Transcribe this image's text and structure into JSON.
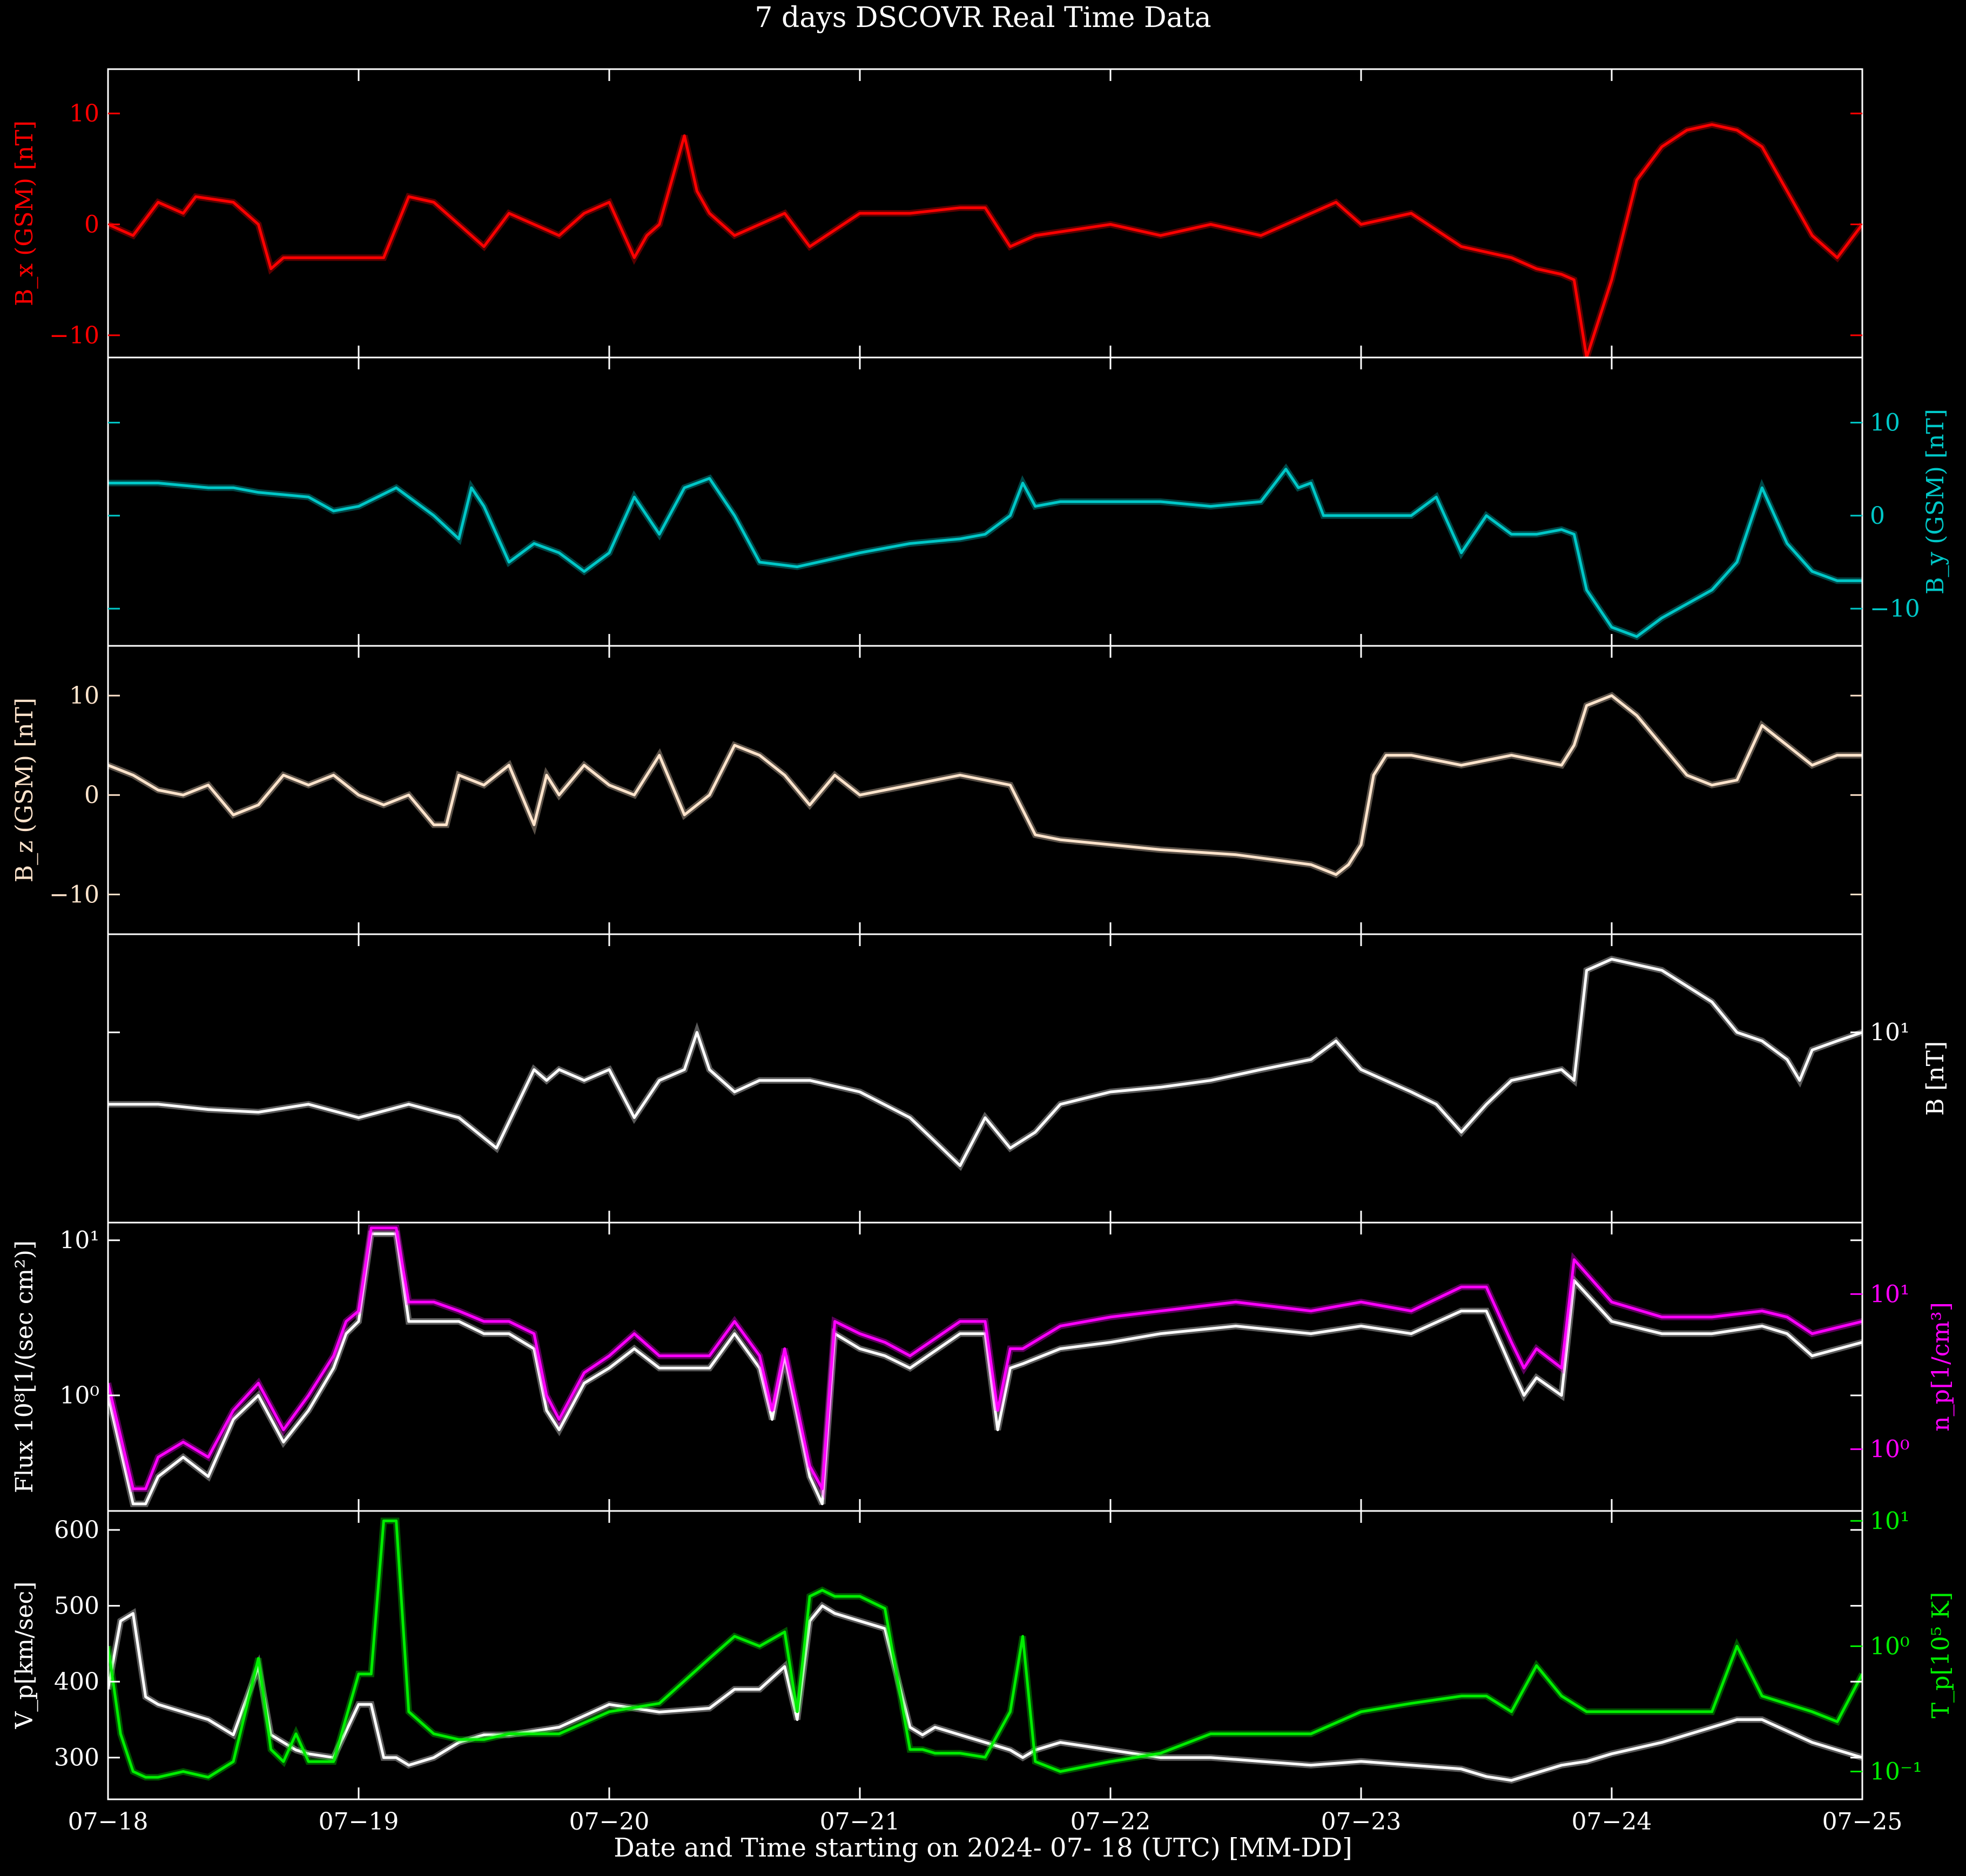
{
  "title": "7 days DSCOVR Real Time Data",
  "xlabel": "Date and Time starting on 2024- 07- 18 (UTC) [MM-DD]",
  "x_ticks": [
    "07−18",
    "07−19",
    "07−20",
    "07−21",
    "07−22",
    "07−23",
    "07−24",
    "07−25"
  ],
  "colors": {
    "background": "#000000",
    "axes": "#ffffff",
    "bx": "#ff0000",
    "by": "#00c8c8",
    "bz": "#ffe4cc",
    "bt": "#ffffff",
    "np": "#ff00ff",
    "flux": "#ffffff",
    "vp": "#ffffff",
    "tp": "#00ee00"
  },
  "chart_data": [
    {
      "type": "line",
      "panel": "Bx",
      "ylabel": "B_x (GSM) [nT]",
      "ylim": [
        -12,
        14
      ],
      "yticks": [
        "10",
        "0",
        "−10"
      ],
      "axis_side": "left",
      "x_days": [
        0,
        0.1,
        0.2,
        0.3,
        0.35,
        0.5,
        0.6,
        0.65,
        0.7,
        0.8,
        1.0,
        1.1,
        1.2,
        1.3,
        1.5,
        1.6,
        1.8,
        1.9,
        2.0,
        2.1,
        2.15,
        2.2,
        2.3,
        2.35,
        2.4,
        2.5,
        2.6,
        2.7,
        2.8,
        3.0,
        3.2,
        3.4,
        3.5,
        3.6,
        3.7,
        4.0,
        4.2,
        4.4,
        4.6,
        4.8,
        4.9,
        5.0,
        5.2,
        5.4,
        5.6,
        5.7,
        5.8,
        5.85,
        5.9,
        6.0,
        6.1,
        6.2,
        6.3,
        6.4,
        6.5,
        6.6,
        6.7,
        6.8,
        6.9,
        7.0
      ],
      "series": [
        {
          "name": "",
          "values": [
            0,
            -1,
            2,
            1,
            2.5,
            2,
            0,
            -4,
            -3,
            -3,
            -3,
            -3,
            2.5,
            2,
            -2,
            1,
            -1,
            1,
            2,
            -3,
            -1,
            0,
            8,
            3,
            1,
            -1,
            0,
            1,
            -2,
            1,
            1,
            1.5,
            1.5,
            -2,
            -1,
            0,
            -1,
            0,
            -1,
            1,
            2,
            0,
            1,
            -2,
            -3,
            -4,
            -4.5,
            -5,
            -12,
            -5,
            4,
            7,
            8.5,
            9,
            8.5,
            7,
            3,
            -1,
            -3,
            0
          ]
        }
      ]
    },
    {
      "type": "line",
      "panel": "By",
      "ylabel": "B_y (GSM) [nT]",
      "ylim": [
        -14,
        17
      ],
      "yticks": [
        "10",
        "0",
        "−10"
      ],
      "axis_side": "right",
      "x_days": [
        0,
        0.2,
        0.4,
        0.5,
        0.6,
        0.8,
        0.9,
        1.0,
        1.15,
        1.3,
        1.4,
        1.45,
        1.5,
        1.6,
        1.7,
        1.8,
        1.9,
        2.0,
        2.1,
        2.2,
        2.3,
        2.4,
        2.5,
        2.6,
        2.75,
        3.0,
        3.2,
        3.4,
        3.5,
        3.6,
        3.65,
        3.7,
        3.8,
        4.0,
        4.2,
        4.4,
        4.6,
        4.7,
        4.75,
        4.8,
        4.85,
        4.9,
        5.0,
        5.2,
        5.3,
        5.4,
        5.5,
        5.6,
        5.7,
        5.8,
        5.85,
        5.9,
        6.0,
        6.1,
        6.2,
        6.4,
        6.5,
        6.55,
        6.6,
        6.7,
        6.8,
        6.9,
        7.0
      ],
      "series": [
        {
          "name": "",
          "values": [
            3.5,
            3.5,
            3,
            3,
            2.5,
            2,
            0.5,
            1,
            3,
            0,
            -2.5,
            3,
            1,
            -5,
            -3,
            -4,
            -6,
            -4,
            2,
            -2,
            3,
            4,
            0,
            -5,
            -5.5,
            -4,
            -3,
            -2.5,
            -2,
            0,
            3.5,
            1,
            1.5,
            1.5,
            1.5,
            1,
            1.5,
            5,
            3,
            3.5,
            0,
            0,
            0,
            0,
            2,
            -4,
            0,
            -2,
            -2,
            -1.5,
            -2,
            -8,
            -12,
            -13,
            -11,
            -8,
            -5,
            -1,
            3,
            -3,
            -6,
            -7,
            -7
          ]
        }
      ]
    },
    {
      "type": "line",
      "panel": "Bz",
      "ylabel": "B_z (GSM) [nT]",
      "ylim": [
        -14,
        15
      ],
      "yticks": [
        "10",
        "0",
        "−10"
      ],
      "axis_side": "left",
      "x_days": [
        0,
        0.1,
        0.2,
        0.3,
        0.4,
        0.5,
        0.6,
        0.7,
        0.8,
        0.9,
        1.0,
        1.1,
        1.2,
        1.3,
        1.35,
        1.4,
        1.5,
        1.6,
        1.7,
        1.75,
        1.8,
        1.9,
        2.0,
        2.1,
        2.2,
        2.3,
        2.4,
        2.5,
        2.6,
        2.7,
        2.8,
        2.9,
        3.0,
        3.2,
        3.4,
        3.6,
        3.7,
        3.8,
        4.0,
        4.2,
        4.5,
        4.8,
        4.9,
        4.95,
        5.0,
        5.05,
        5.1,
        5.2,
        5.4,
        5.6,
        5.8,
        5.85,
        5.9,
        6.0,
        6.1,
        6.2,
        6.3,
        6.4,
        6.5,
        6.6,
        6.7,
        6.8,
        6.9,
        7.0
      ],
      "series": [
        {
          "name": "",
          "values": [
            3,
            2,
            0.5,
            0,
            1,
            -2,
            -1,
            2,
            1,
            2,
            0,
            -1,
            0,
            -3,
            -3,
            2,
            1,
            3,
            -3,
            2,
            0,
            3,
            1,
            0,
            4,
            -2,
            0,
            5,
            4,
            2,
            -1,
            2,
            0,
            1,
            2,
            1,
            -4,
            -4.5,
            -5,
            -5.5,
            -6,
            -7,
            -8,
            -7,
            -5,
            2,
            4,
            4,
            3,
            4,
            3,
            5,
            9,
            10,
            8,
            5,
            2,
            1,
            1.5,
            7,
            5,
            3,
            4,
            4
          ]
        }
      ]
    },
    {
      "type": "line",
      "panel": "Bt",
      "ylabel": "B [nT]",
      "yscale": "log",
      "ylim": [
        3.2,
        18
      ],
      "yticks": [
        "10¹"
      ],
      "axis_side": "right",
      "x_days": [
        0,
        0.2,
        0.4,
        0.6,
        0.8,
        1.0,
        1.2,
        1.4,
        1.55,
        1.7,
        1.75,
        1.8,
        1.9,
        2.0,
        2.1,
        2.2,
        2.3,
        2.35,
        2.4,
        2.5,
        2.6,
        2.8,
        3.0,
        3.2,
        3.3,
        3.4,
        3.5,
        3.6,
        3.7,
        3.8,
        4.0,
        4.2,
        4.4,
        4.6,
        4.8,
        4.9,
        5.0,
        5.2,
        5.3,
        5.4,
        5.5,
        5.6,
        5.8,
        5.85,
        5.9,
        6.0,
        6.2,
        6.4,
        6.5,
        6.6,
        6.7,
        6.75,
        6.8,
        6.9,
        7.0
      ],
      "series": [
        {
          "name": "",
          "values": [
            6.5,
            6.5,
            6.3,
            6.2,
            6.5,
            6.0,
            6.5,
            6.0,
            5.0,
            8,
            7.5,
            8,
            7.5,
            8,
            6,
            7.5,
            8,
            10,
            8,
            7,
            7.5,
            7.5,
            7,
            6,
            5.2,
            4.5,
            6,
            5,
            5.5,
            6.5,
            7,
            7.2,
            7.5,
            8,
            8.5,
            9.5,
            8,
            7,
            6.5,
            5.5,
            6.5,
            7.5,
            8,
            7.5,
            14.5,
            15.5,
            14.5,
            12,
            10,
            9.5,
            8.5,
            7.5,
            9,
            9.5,
            10
          ]
        }
      ]
    },
    {
      "type": "line",
      "panel": "Flux / Np",
      "ylabel": "Flux 10⁸[1/(sec cm²)]",
      "ylabel_right": "n_p[1/cm³]",
      "yscale": "log",
      "ylim": [
        0.18,
        13
      ],
      "yticks": [
        "10¹",
        "10⁰"
      ],
      "yticks_right": [
        "10¹",
        "10⁰"
      ],
      "axis_side": "both",
      "x_days": [
        0,
        0.1,
        0.15,
        0.2,
        0.3,
        0.4,
        0.5,
        0.6,
        0.7,
        0.8,
        0.9,
        0.95,
        1.0,
        1.05,
        1.15,
        1.2,
        1.3,
        1.4,
        1.5,
        1.6,
        1.7,
        1.75,
        1.8,
        1.9,
        2.0,
        2.1,
        2.2,
        2.3,
        2.4,
        2.5,
        2.6,
        2.65,
        2.7,
        2.8,
        2.85,
        2.9,
        3.0,
        3.1,
        3.2,
        3.4,
        3.5,
        3.55,
        3.6,
        3.65,
        3.8,
        4.0,
        4.2,
        4.5,
        4.8,
        5.0,
        5.2,
        5.4,
        5.5,
        5.6,
        5.65,
        5.7,
        5.8,
        5.85,
        6.0,
        6.2,
        6.4,
        6.6,
        6.7,
        6.8,
        7.0
      ],
      "series": [
        {
          "name": "Flux",
          "values": [
            1.0,
            0.2,
            0.2,
            0.3,
            0.4,
            0.3,
            0.7,
            1.0,
            0.5,
            0.8,
            1.5,
            2.5,
            3,
            11,
            11,
            3,
            3,
            3,
            2.5,
            2.5,
            2.0,
            0.8,
            0.6,
            1.2,
            1.5,
            2.0,
            1.5,
            1.5,
            1.5,
            2.5,
            1.5,
            0.7,
            1.8,
            0.3,
            0.2,
            2.5,
            2.0,
            1.8,
            1.5,
            2.5,
            2.5,
            0.6,
            1.5,
            1.6,
            2.0,
            2.2,
            2.5,
            2.8,
            2.5,
            2.8,
            2.5,
            3.5,
            3.5,
            1.5,
            1.0,
            1.3,
            1.0,
            5.5,
            3,
            2.5,
            2.5,
            2.8,
            2.5,
            1.8,
            2.2
          ]
        },
        {
          "name": "Np",
          "values": [
            1.2,
            0.25,
            0.25,
            0.4,
            0.5,
            0.4,
            0.8,
            1.2,
            0.6,
            1.0,
            1.8,
            3,
            3.5,
            12,
            12,
            4,
            4,
            3.5,
            3,
            3,
            2.5,
            1.0,
            0.7,
            1.4,
            1.8,
            2.5,
            1.8,
            1.8,
            1.8,
            3,
            1.8,
            0.8,
            2.0,
            0.35,
            0.25,
            3,
            2.5,
            2.2,
            1.8,
            3,
            3,
            0.8,
            2.0,
            2.0,
            2.8,
            3.2,
            3.5,
            4,
            3.5,
            4,
            3.5,
            5,
            5,
            2.2,
            1.5,
            2.0,
            1.5,
            7.5,
            4,
            3.2,
            3.2,
            3.5,
            3.2,
            2.5,
            3
          ]
        }
      ]
    },
    {
      "type": "line",
      "panel": "Vp / Tp",
      "ylabel": "V_p[km/sec]",
      "ylabel_right": "T_p[10⁵ K]",
      "ylim": [
        245,
        625
      ],
      "yticks": [
        "600",
        "500",
        "400",
        "300"
      ],
      "yticks_right": [
        "10¹",
        "10⁰",
        "10⁻¹"
      ],
      "tp_log_range": [
        0.06,
        12
      ],
      "axis_side": "both",
      "x_days": [
        0,
        0.05,
        0.1,
        0.15,
        0.2,
        0.3,
        0.4,
        0.5,
        0.6,
        0.65,
        0.7,
        0.75,
        0.8,
        0.9,
        1.0,
        1.05,
        1.1,
        1.15,
        1.2,
        1.3,
        1.4,
        1.5,
        1.6,
        1.8,
        2.0,
        2.2,
        2.4,
        2.5,
        2.6,
        2.7,
        2.75,
        2.8,
        2.85,
        2.9,
        3.0,
        3.1,
        3.2,
        3.25,
        3.3,
        3.4,
        3.5,
        3.6,
        3.65,
        3.7,
        3.8,
        4.0,
        4.2,
        4.4,
        4.6,
        4.8,
        5.0,
        5.2,
        5.4,
        5.5,
        5.6,
        5.7,
        5.8,
        5.9,
        6.0,
        6.2,
        6.4,
        6.5,
        6.6,
        6.8,
        6.9,
        7.0
      ],
      "series": [
        {
          "name": "Vp",
          "values": [
            390,
            480,
            490,
            380,
            370,
            360,
            350,
            330,
            420,
            330,
            320,
            310,
            305,
            300,
            370,
            370,
            300,
            300,
            290,
            300,
            320,
            330,
            330,
            340,
            370,
            360,
            365,
            390,
            390,
            420,
            350,
            480,
            500,
            490,
            480,
            470,
            340,
            330,
            340,
            330,
            320,
            310,
            300,
            310,
            320,
            310,
            300,
            300,
            295,
            290,
            295,
            290,
            285,
            275,
            270,
            280,
            290,
            295,
            305,
            320,
            340,
            350,
            350,
            320,
            310,
            300
          ]
        },
        {
          "name": "Tp",
          "values": [
            1.0,
            0.2,
            0.1,
            0.09,
            0.09,
            0.1,
            0.09,
            0.12,
            0.8,
            0.15,
            0.12,
            0.2,
            0.12,
            0.12,
            0.6,
            0.6,
            10,
            10,
            0.3,
            0.2,
            0.18,
            0.18,
            0.2,
            0.2,
            0.3,
            0.35,
            0.8,
            1.2,
            1.0,
            1.3,
            0.3,
            2.5,
            2.8,
            2.5,
            2.5,
            2.0,
            0.15,
            0.15,
            0.14,
            0.14,
            0.13,
            0.3,
            1.2,
            0.12,
            0.1,
            0.12,
            0.14,
            0.2,
            0.2,
            0.2,
            0.3,
            0.35,
            0.4,
            0.4,
            0.3,
            0.7,
            0.4,
            0.3,
            0.3,
            0.3,
            0.3,
            1.0,
            0.4,
            0.3,
            0.25,
            0.6
          ]
        }
      ]
    }
  ]
}
